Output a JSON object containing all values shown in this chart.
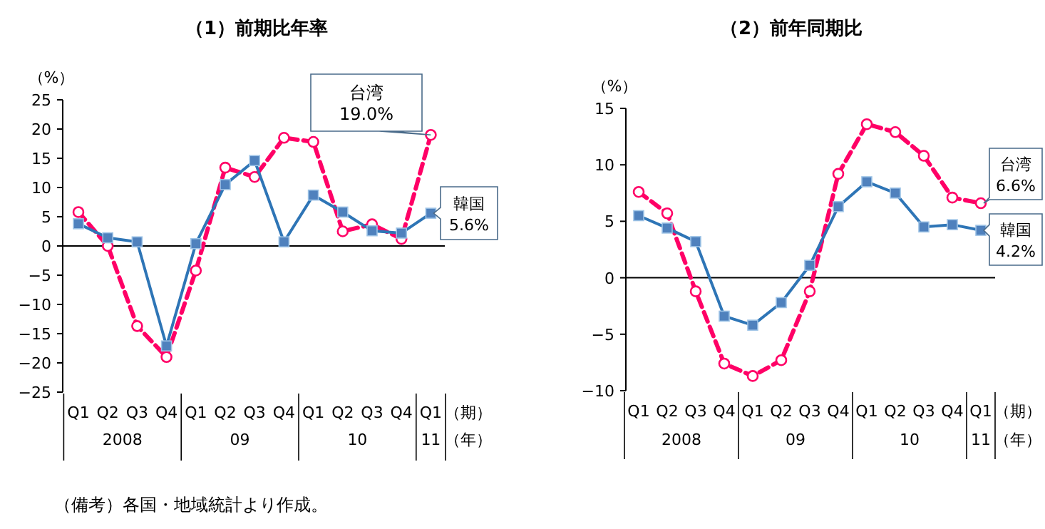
{
  "chart_data": [
    {
      "type": "line",
      "title": "（1）前期比年率",
      "ylabel": "（%）",
      "xlabel": "（期）",
      "categories": [
        "Q1",
        "Q2",
        "Q3",
        "Q4",
        "Q1",
        "Q2",
        "Q3",
        "Q4",
        "Q1",
        "Q2",
        "Q3",
        "Q4",
        "Q1"
      ],
      "ylim": [
        -25,
        25
      ],
      "yticks": [
        -25,
        -20,
        -15,
        -10,
        -5,
        0,
        5,
        10,
        15,
        20,
        25
      ],
      "ref_lines": [
        {
          "axis": "y",
          "value": 0
        }
      ],
      "annotations": [
        "2008",
        "09",
        "10",
        "11",
        "（年）",
        "（備考）各国・地域統計より作成。"
      ],
      "series": [
        {
          "name": "台湾",
          "color": "#ff0066",
          "marker": "circle",
          "line_style": "dashed",
          "values": [
            5.8,
            0,
            -13.7,
            -19.0,
            -4.2,
            13.4,
            11.8,
            18.5,
            17.8,
            2.5,
            3.7,
            1.2,
            19.0
          ],
          "value_labels": [
            null,
            null,
            null,
            null,
            null,
            null,
            null,
            null,
            null,
            null,
            null,
            null,
            "19.0%"
          ]
        },
        {
          "name": "韓国",
          "color": "#2e75b6",
          "marker": "square",
          "line_style": "solid",
          "values": [
            3.8,
            1.4,
            0.7,
            -17.1,
            0.4,
            10.5,
            14.6,
            0.7,
            8.7,
            5.8,
            2.6,
            2.2,
            5.6
          ],
          "value_labels": [
            null,
            null,
            null,
            null,
            null,
            null,
            null,
            null,
            null,
            null,
            null,
            null,
            "5.6%"
          ]
        }
      ]
    },
    {
      "type": "line",
      "title": "（2）前年同期比",
      "ylabel": "（%）",
      "xlabel": "（期）",
      "categories": [
        "Q1",
        "Q2",
        "Q3",
        "Q4",
        "Q1",
        "Q2",
        "Q3",
        "Q4",
        "Q1",
        "Q2",
        "Q3",
        "Q4",
        "Q1"
      ],
      "ylim": [
        -10,
        15
      ],
      "yticks": [
        -10,
        -5,
        0,
        5,
        10,
        15
      ],
      "ref_lines": [
        {
          "axis": "y",
          "value": 0
        }
      ],
      "annotations": [
        "2008",
        "09",
        "10",
        "11",
        "（年）"
      ],
      "series": [
        {
          "name": "台湾",
          "color": "#ff0066",
          "marker": "circle",
          "line_style": "dashed",
          "values": [
            7.6,
            5.7,
            -1.2,
            -7.6,
            -8.7,
            -7.3,
            -1.2,
            9.2,
            13.6,
            12.9,
            10.8,
            7.1,
            6.6
          ],
          "value_labels": [
            null,
            null,
            null,
            null,
            null,
            null,
            null,
            null,
            null,
            null,
            null,
            null,
            "6.6%"
          ]
        },
        {
          "name": "韓国",
          "color": "#2e75b6",
          "marker": "square",
          "line_style": "solid",
          "values": [
            5.5,
            4.4,
            3.2,
            -3.4,
            -4.2,
            -2.2,
            1.1,
            6.3,
            8.5,
            7.5,
            4.5,
            4.7,
            4.2
          ],
          "value_labels": [
            null,
            null,
            null,
            null,
            null,
            null,
            null,
            null,
            null,
            null,
            null,
            null,
            "4.2%"
          ]
        }
      ]
    }
  ]
}
